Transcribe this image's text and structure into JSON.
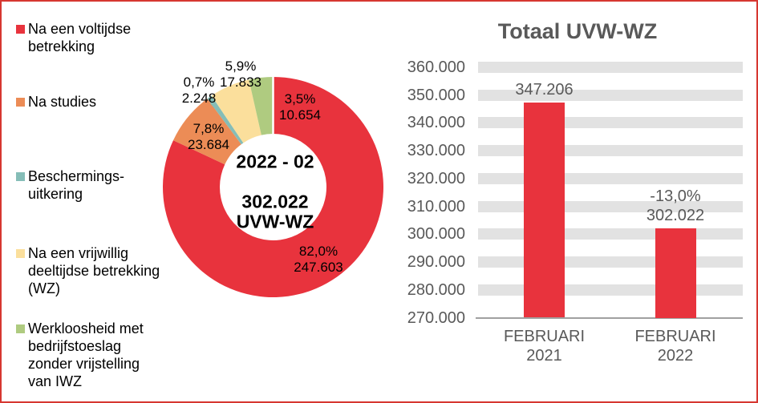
{
  "page": {
    "border_color": "#D63731",
    "background": "#FFFFFF",
    "text_gray": "#595959"
  },
  "legend": {
    "items": [
      {
        "label": "Na een voltijdse\nbetrekking",
        "color": "#E8333D"
      },
      {
        "label": "Na studies",
        "color": "#EC8C56"
      },
      {
        "label": "Beschermings-\nuitkering",
        "color": "#85BDB7"
      },
      {
        "label": "Na een vrijwillig\ndeeltijdse betrekking\n(WZ)",
        "color": "#FBDF9C"
      },
      {
        "label": "Werkloosheid met\nbedrijfstoeslag\nzonder vrijstelling\nvan IWZ",
        "color": "#AFCB80"
      }
    ]
  },
  "chart_data": [
    {
      "type": "pie",
      "donut": true,
      "start_angle_deg_from_12_clockwise": 0,
      "total": 302022,
      "center_lines": [
        "2022 - 02",
        "302.022",
        "UVW-WZ"
      ],
      "slices": [
        {
          "name": "Na een voltijdse betrekking",
          "value": 247603,
          "pct_label": "82,0%",
          "value_label": "247.603",
          "color": "#E8333D"
        },
        {
          "name": "Na studies",
          "value": 23684,
          "pct_label": "7,8%",
          "value_label": "23.684",
          "color": "#EC8C56"
        },
        {
          "name": "Beschermingsuitkering",
          "value": 2248,
          "pct_label": "0,7%",
          "value_label": "2.248",
          "color": "#85BDB7"
        },
        {
          "name": "Na een vrijwillig deeltijdse betrekking (WZ)",
          "value": 17833,
          "pct_label": "5,9%",
          "value_label": "17.833",
          "color": "#FBDF9C"
        },
        {
          "name": "Werkloosheid met bedrijfstoeslag zonder vrijstelling van IWZ",
          "value": 10654,
          "pct_label": "3,5%",
          "value_label": "10.654",
          "color": "#AFCB80"
        }
      ]
    },
    {
      "type": "bar",
      "title": "Totaal UVW-WZ",
      "categories": [
        "FEBRUARI\n2021",
        "FEBRUARI\n2022"
      ],
      "values": [
        347206,
        302022
      ],
      "bar_labels": [
        "347.206",
        "-13,0%\n302.022"
      ],
      "ylim": [
        270000,
        360000
      ],
      "ytick_step": 10000,
      "ytick_labels": [
        "270.000",
        "280.000",
        "290.000",
        "300.000",
        "310.000",
        "320.000",
        "330.000",
        "340.000",
        "350.000",
        "360.000"
      ],
      "bar_color": "#E8333D",
      "band_color": "#E2E2E2",
      "axis_color": "#A0A0A0",
      "grid_style": "thick horizontal bands at each tick",
      "legend_position": "none"
    }
  ]
}
